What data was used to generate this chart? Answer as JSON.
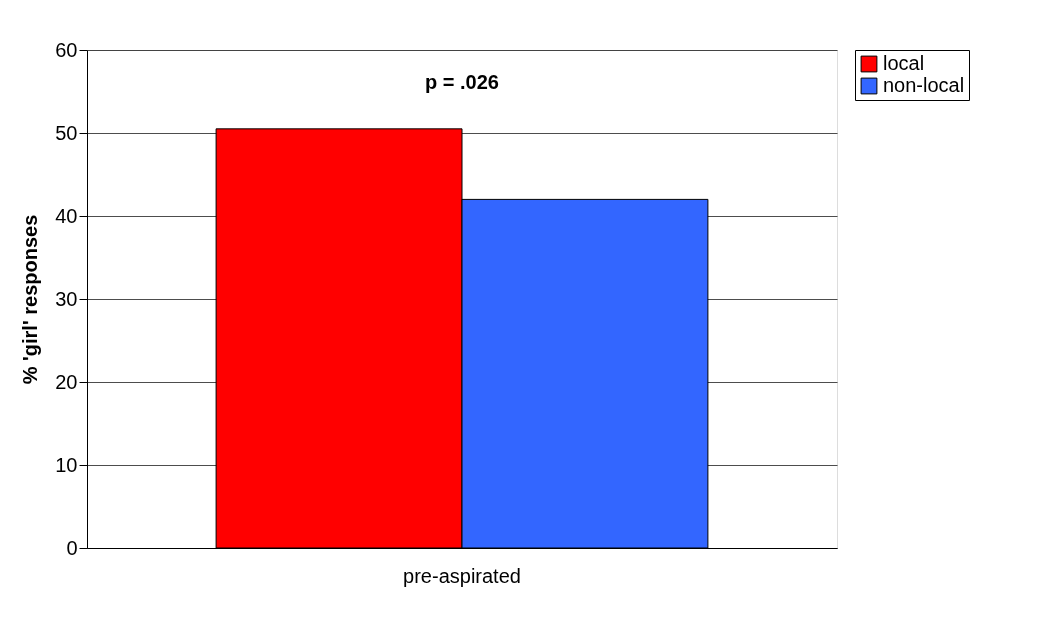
{
  "chart_data": {
    "type": "bar",
    "ylabel": "% 'girl' responses",
    "categories": [
      "pre-aspirated"
    ],
    "series": [
      {
        "name": "local",
        "color": "#ff0000",
        "values": [
          50.5
        ]
      },
      {
        "name": "non-local",
        "color": "#3366ff",
        "values": [
          42
        ]
      }
    ],
    "ylim": [
      0,
      60
    ],
    "yticks": [
      0,
      10,
      20,
      30,
      40,
      50,
      60
    ],
    "grid": "y",
    "legend": "right",
    "annotations": [
      "p = .026"
    ]
  }
}
